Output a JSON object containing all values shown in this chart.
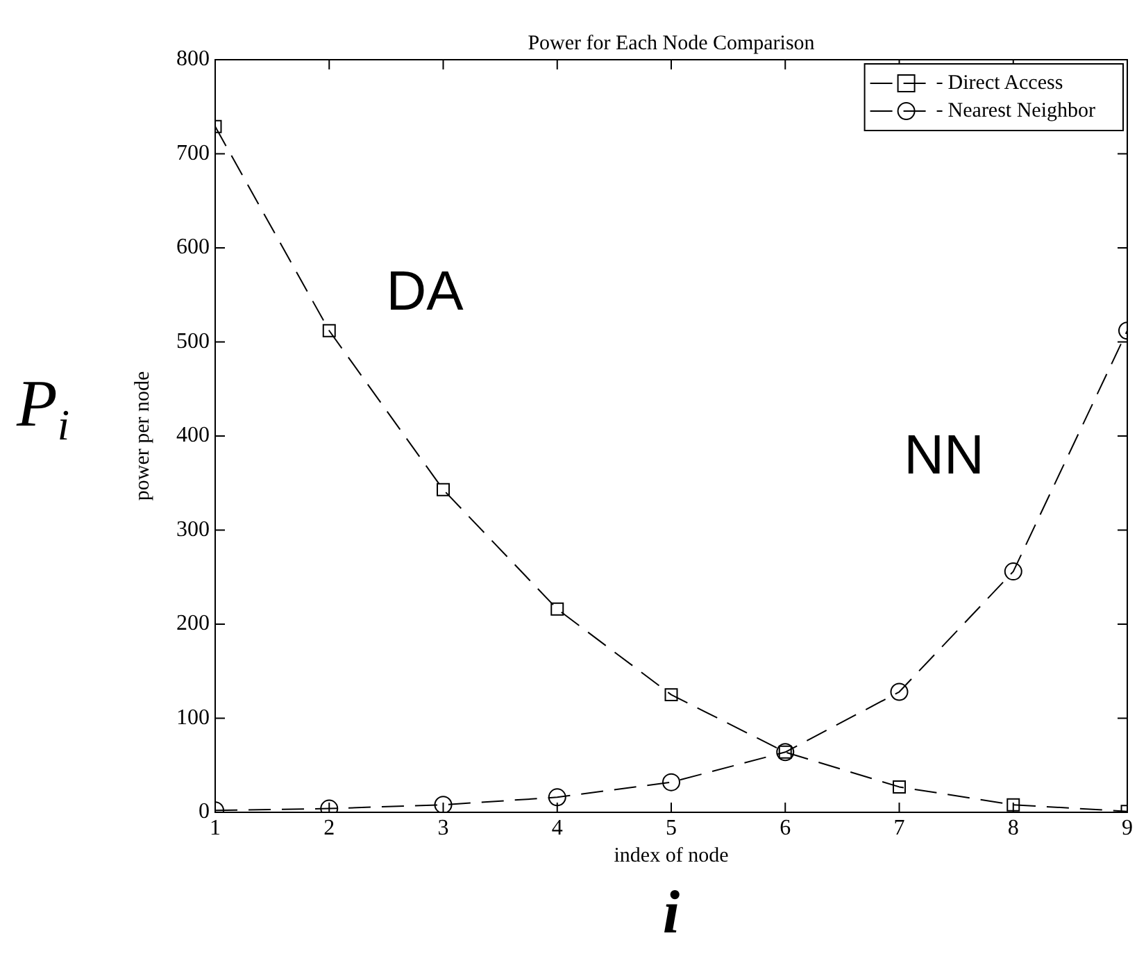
{
  "chart_data": {
    "type": "line",
    "title": "Power for Each Node Comparison",
    "xlabel": "index of node",
    "ylabel": "power per node",
    "x": [
      1,
      2,
      3,
      4,
      5,
      6,
      7,
      8,
      9
    ],
    "series": [
      {
        "name": "Direct Access",
        "color": "#000000",
        "marker": "square",
        "values": [
          729,
          512,
          343,
          216,
          125,
          64,
          27,
          8,
          1
        ]
      },
      {
        "name": "Nearest Neighbor",
        "color": "#000000",
        "marker": "circle",
        "values": [
          2,
          4,
          8,
          16,
          32,
          64,
          128,
          256,
          512
        ]
      }
    ],
    "xlim": [
      1,
      9
    ],
    "xticks": [
      1,
      2,
      3,
      4,
      5,
      6,
      7,
      8,
      9
    ],
    "ylim": [
      0,
      800
    ],
    "yticks": [
      0,
      100,
      200,
      300,
      400,
      500,
      600,
      700,
      800
    ],
    "grid": false,
    "legend": "top right",
    "line_style": "dashed",
    "annotations": [
      "DA",
      "NN",
      "P$_{i}$",
      "i"
    ]
  }
}
